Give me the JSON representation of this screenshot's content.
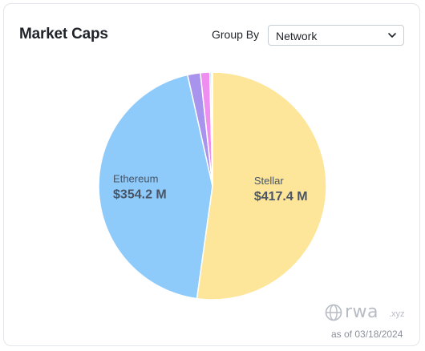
{
  "header": {
    "title": "Market Caps",
    "group_by_label": "Group By",
    "group_by_value": "Network"
  },
  "chart_data": {
    "type": "pie",
    "slices": [
      {
        "name": "Stellar",
        "label": "Stellar",
        "value_label": "$417.4 M",
        "value": 417.4,
        "color": "#fde69a"
      },
      {
        "name": "Ethereum",
        "label": "Ethereum",
        "value_label": "$354.2 M",
        "value": 354.2,
        "color": "#8ecbfa"
      },
      {
        "name": "",
        "label": "",
        "value_label": "",
        "value": 14.5,
        "color": "#a894ec"
      },
      {
        "name": "",
        "label": "",
        "value_label": "",
        "value": 10.6,
        "color": "#ef8df0"
      },
      {
        "name": "",
        "label": "",
        "value_label": "",
        "value": 2.0,
        "color": "#a6e6df"
      },
      {
        "name": "",
        "label": "",
        "value_label": "",
        "value": 1.0,
        "color": "#b9c2f2"
      }
    ],
    "label_color": "#4a5566",
    "edge_color": "#ffffff"
  },
  "footer": {
    "brand": "rwa",
    "brand_tld": ".xyz",
    "as_of": "as of 03/18/2024"
  }
}
